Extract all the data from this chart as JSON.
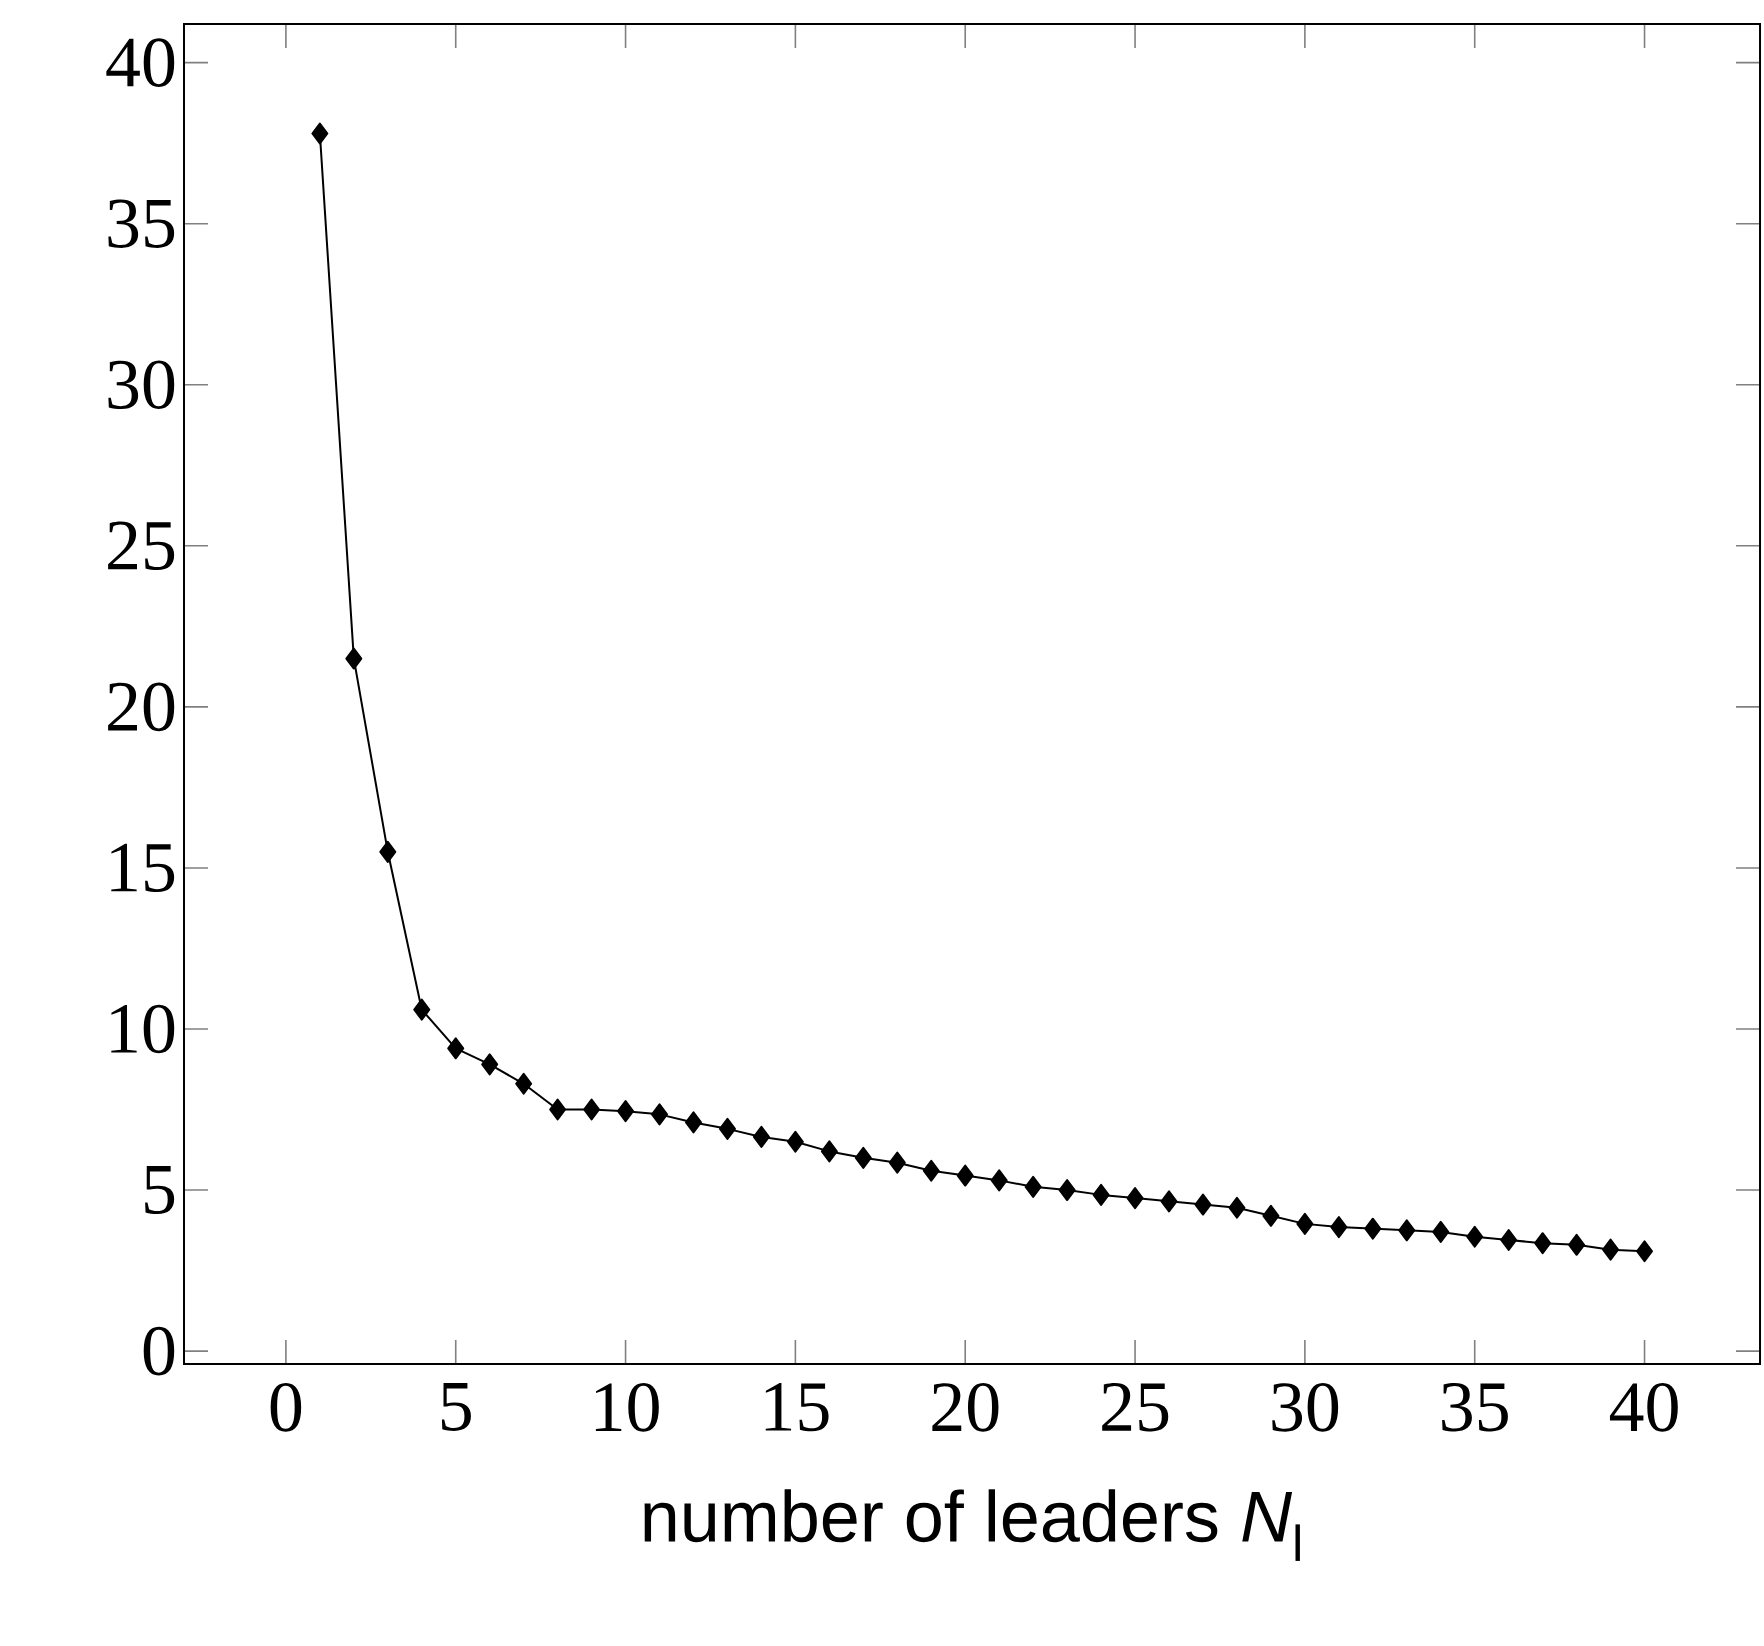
{
  "chart_data": {
    "type": "line",
    "xlabel": "number of leaders *N*$_{l}$",
    "x": [
      1,
      2,
      3,
      4,
      5,
      6,
      7,
      8,
      9,
      10,
      11,
      12,
      13,
      14,
      15,
      16,
      17,
      18,
      19,
      20,
      21,
      22,
      23,
      24,
      25,
      26,
      27,
      28,
      29,
      30,
      31,
      32,
      33,
      34,
      35,
      36,
      37,
      38,
      39,
      40
    ],
    "series": [
      {
        "color": "#000000",
        "values": [
          37.8,
          21.5,
          15.5,
          10.6,
          9.4,
          8.9,
          8.3,
          7.5,
          7.5,
          7.45,
          7.35,
          7.1,
          6.9,
          6.65,
          6.5,
          6.2,
          6.0,
          5.85,
          5.6,
          5.45,
          5.3,
          5.1,
          5.0,
          4.85,
          4.75,
          4.65,
          4.55,
          4.45,
          4.2,
          3.95,
          3.85,
          3.8,
          3.75,
          3.7,
          3.55,
          3.45,
          3.35,
          3.3,
          3.15,
          3.1
        ]
      }
    ],
    "xlim": [
      -3,
      43.4
    ],
    "ylim": [
      -0.4,
      41.2
    ],
    "xticks": [
      0,
      5,
      10,
      15,
      20,
      25,
      30,
      35,
      40
    ],
    "yticks": [
      0,
      5,
      10,
      15,
      20,
      25,
      30,
      35,
      40
    ],
    "marker": "diamond",
    "line_style": "solid"
  }
}
